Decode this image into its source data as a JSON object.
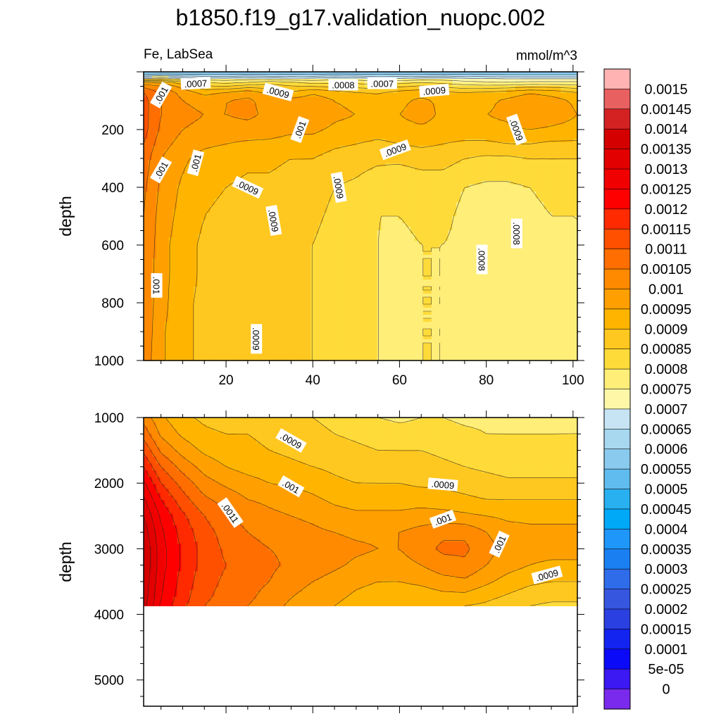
{
  "figure": {
    "title": "b1850.f19_g17.validation_nuopc.002",
    "left_string": "Fe, LabSea",
    "right_string": "mmol/m^3"
  },
  "colors": {
    "frame": "#000000",
    "contour_line": "#222222",
    "missing": "#ffffff"
  },
  "chart_data": [
    {
      "type": "heatmap",
      "panel": "upper",
      "title": "",
      "xlabel": "",
      "ylabel": "depth",
      "xlim": [
        1,
        101
      ],
      "ylim": [
        1000,
        0
      ],
      "x_ticks": [
        20,
        40,
        60,
        80,
        100
      ],
      "x_tick_labels": [
        "20",
        "40",
        "60",
        "80",
        "100"
      ],
      "y_ticks": [
        200,
        400,
        600,
        800,
        1000
      ],
      "y_tick_labels": [
        "200",
        "400",
        "600",
        "800",
        "1000"
      ],
      "x": [
        1,
        5,
        10,
        15,
        20,
        25,
        30,
        35,
        40,
        45,
        50,
        55,
        60,
        65,
        70,
        75,
        80,
        85,
        90,
        95,
        101
      ],
      "depth": [
        5,
        20,
        40,
        70,
        100,
        150,
        200,
        250,
        300,
        400,
        500,
        600,
        700,
        800,
        900,
        1000
      ],
      "values": [
        [
          0.00055,
          0.00055,
          0.00055,
          0.00055,
          0.00055,
          0.00055,
          0.00055,
          0.00055,
          0.00055,
          0.00055,
          0.00055,
          0.00055,
          0.00055,
          0.00055,
          0.00055,
          0.00055,
          0.00055,
          0.00055,
          0.00055,
          0.00055,
          0.00055
        ],
        [
          0.0007,
          0.00072,
          0.00071,
          0.0007,
          0.0007,
          0.00071,
          0.0007,
          0.00069,
          0.0007,
          0.00072,
          0.00071,
          0.0007,
          0.00069,
          0.0007,
          0.00071,
          0.0007,
          0.00069,
          0.00068,
          0.00068,
          0.00068,
          0.00068
        ],
        [
          0.001,
          0.00098,
          0.0009,
          0.00082,
          0.0008,
          0.00082,
          0.00085,
          0.00083,
          0.0008,
          0.0008,
          0.0008,
          0.00078,
          0.0008,
          0.00082,
          0.0008,
          0.00078,
          0.00077,
          0.00077,
          0.00078,
          0.00078,
          0.00078
        ],
        [
          0.0011,
          0.00104,
          0.00098,
          0.00093,
          0.00095,
          0.00098,
          0.00093,
          0.0009,
          0.00094,
          0.00092,
          0.0009,
          0.00089,
          0.00092,
          0.00093,
          0.00091,
          0.0009,
          0.00091,
          0.00092,
          0.00094,
          0.00093,
          0.0009
        ],
        [
          0.00112,
          0.00105,
          0.001,
          0.00098,
          0.001,
          0.00101,
          0.00098,
          0.00097,
          0.00098,
          0.00095,
          0.00094,
          0.00093,
          0.00094,
          0.00096,
          0.00094,
          0.00093,
          0.00094,
          0.00096,
          0.00099,
          0.00097,
          0.00094
        ],
        [
          0.00112,
          0.00105,
          0.00102,
          0.001,
          0.001,
          0.00101,
          0.00099,
          0.00098,
          0.00099,
          0.00096,
          0.00095,
          0.00094,
          0.00095,
          0.00097,
          0.00094,
          0.00094,
          0.00095,
          0.00096,
          0.001,
          0.00098,
          0.00095
        ],
        [
          0.00112,
          0.00104,
          0.001,
          0.00098,
          0.00098,
          0.00098,
          0.00097,
          0.00096,
          0.00096,
          0.00094,
          0.00093,
          0.00092,
          0.00093,
          0.00094,
          0.00093,
          0.00093,
          0.00093,
          0.00094,
          0.00095,
          0.00094,
          0.00093
        ],
        [
          0.0011,
          0.00102,
          0.00098,
          0.00096,
          0.00095,
          0.00094,
          0.00094,
          0.00093,
          0.00093,
          0.00091,
          0.0009,
          0.00089,
          0.0009,
          0.00091,
          0.0009,
          0.00089,
          0.00089,
          0.0009,
          0.0009,
          0.00089,
          0.00089
        ],
        [
          0.00108,
          0.001,
          0.00096,
          0.00093,
          0.00092,
          0.00091,
          0.00091,
          0.0009,
          0.0009,
          0.00088,
          0.00087,
          0.00086,
          0.00086,
          0.00087,
          0.00087,
          0.00085,
          0.00084,
          0.00084,
          0.00085,
          0.00085,
          0.00085
        ],
        [
          0.00106,
          0.00099,
          0.00094,
          0.00091,
          0.0009,
          0.00089,
          0.00089,
          0.00088,
          0.00087,
          0.00085,
          0.00084,
          0.00082,
          0.00081,
          0.00082,
          0.00082,
          0.0008,
          0.00079,
          0.00079,
          0.0008,
          0.00081,
          0.00081
        ],
        [
          0.00105,
          0.00098,
          0.00093,
          0.0009,
          0.00089,
          0.00088,
          0.00089,
          0.00087,
          0.00086,
          0.00084,
          0.00083,
          0.0008,
          0.0008,
          0.00081,
          0.00081,
          0.00079,
          0.00079,
          0.00078,
          0.00079,
          0.0008,
          0.0008
        ],
        [
          0.00105,
          0.00097,
          0.00092,
          0.00089,
          0.00088,
          0.00088,
          0.00089,
          0.00086,
          0.00085,
          0.00083,
          0.00082,
          0.0008,
          0.00079,
          0.0008,
          0.0008,
          0.00079,
          0.00078,
          0.00078,
          0.00079,
          0.00079,
          0.0008
        ],
        [
          0.00104,
          0.00097,
          0.00092,
          0.00089,
          0.00088,
          0.00088,
          0.00089,
          0.00086,
          0.00085,
          0.00083,
          0.00082,
          0.0008,
          0.00079,
          0.0008,
          0.0008,
          0.00079,
          0.00078,
          0.00079,
          0.00079,
          0.00079,
          0.0008
        ],
        [
          0.00104,
          0.00097,
          0.00091,
          0.00089,
          0.00088,
          0.00088,
          0.00088,
          0.00086,
          0.00085,
          0.00083,
          0.00082,
          0.0008,
          0.00079,
          0.0008,
          0.0008,
          0.00079,
          0.00079,
          0.00079,
          0.00079,
          0.00079,
          0.0008
        ],
        [
          0.00104,
          0.00096,
          0.00091,
          0.00089,
          0.00088,
          0.00088,
          0.00088,
          0.00086,
          0.00085,
          0.00083,
          0.00082,
          0.0008,
          0.00079,
          0.0008,
          0.0008,
          0.00079,
          0.00079,
          0.00079,
          0.00079,
          0.00079,
          0.0008
        ],
        [
          0.00103,
          0.00096,
          0.00091,
          0.00089,
          0.00088,
          0.00088,
          0.00088,
          0.00086,
          0.00085,
          0.00083,
          0.00082,
          0.0008,
          0.00079,
          0.0008,
          0.0008,
          0.00079,
          0.00079,
          0.00079,
          0.00079,
          0.00079,
          0.0008
        ]
      ],
      "contour_labels": [
        {
          "text": ".001",
          "x": 5,
          "depth": 80,
          "angle": -60
        },
        {
          "text": ".0007",
          "x": 13,
          "depth": 40,
          "angle": -3
        },
        {
          "text": ".0009",
          "x": 32,
          "depth": 70,
          "angle": 15
        },
        {
          "text": ".0008",
          "x": 47,
          "depth": 45,
          "angle": 0
        },
        {
          "text": ".0007",
          "x": 56,
          "depth": 40,
          "angle": 0
        },
        {
          "text": ".0009",
          "x": 68,
          "depth": 65,
          "angle": -5
        },
        {
          "text": ".001",
          "x": 37,
          "depth": 200,
          "angle": -70
        },
        {
          "text": ".0009",
          "x": 87,
          "depth": 200,
          "angle": 70
        },
        {
          "text": ".0009",
          "x": 59,
          "depth": 270,
          "angle": -20
        },
        {
          "text": ".001",
          "x": 5,
          "depth": 340,
          "angle": -60
        },
        {
          "text": ".001",
          "x": 13,
          "depth": 315,
          "angle": -75
        },
        {
          "text": ".0009",
          "x": 25,
          "depth": 400,
          "angle": 25
        },
        {
          "text": ".0009",
          "x": 46,
          "depth": 400,
          "angle": 80
        },
        {
          "text": ".0009",
          "x": 31,
          "depth": 515,
          "angle": 80
        },
        {
          "text": ".0008",
          "x": 79,
          "depth": 650,
          "angle": 90
        },
        {
          "text": ".0008",
          "x": 87,
          "depth": 560,
          "angle": 90
        },
        {
          "text": ".001",
          "x": 4,
          "depth": 740,
          "angle": 90
        },
        {
          "text": ".0009",
          "x": 27,
          "depth": 925,
          "angle": 90
        }
      ]
    },
    {
      "type": "heatmap",
      "panel": "lower",
      "title": "",
      "xlabel": "",
      "ylabel": "depth",
      "xlim": [
        1,
        101
      ],
      "ylim": [
        5400,
        1000
      ],
      "y_ticks": [
        1000,
        2000,
        3000,
        4000,
        5000
      ],
      "y_tick_labels": [
        "1000",
        "2000",
        "3000",
        "4000",
        "5000"
      ],
      "x": [
        1,
        5,
        10,
        15,
        20,
        25,
        30,
        35,
        40,
        45,
        50,
        55,
        60,
        65,
        70,
        75,
        80,
        85,
        90,
        95,
        101
      ],
      "depth": [
        1000,
        1250,
        1500,
        1750,
        2000,
        2250,
        2500,
        2750,
        3000,
        3250,
        3500,
        3750,
        3870
      ],
      "valid_max_depth": 3870,
      "values": [
        [
          0.00103,
          0.00096,
          0.00091,
          0.00089,
          0.00088,
          0.00088,
          0.00088,
          0.00086,
          0.00085,
          0.00083,
          0.00082,
          0.0008,
          0.00079,
          0.0008,
          0.0008,
          0.00079,
          0.00079,
          0.00079,
          0.00079,
          0.00079,
          0.0008
        ],
        [
          0.00108,
          0.00099,
          0.00094,
          0.00091,
          0.0009,
          0.0009,
          0.00089,
          0.00088,
          0.00087,
          0.00085,
          0.00084,
          0.00083,
          0.00082,
          0.00082,
          0.00082,
          0.00081,
          0.0008,
          0.0008,
          0.0008,
          0.0008,
          0.0008
        ],
        [
          0.00114,
          0.00104,
          0.00098,
          0.00094,
          0.00092,
          0.00091,
          0.0009,
          0.00089,
          0.00088,
          0.00087,
          0.00086,
          0.00085,
          0.00085,
          0.00085,
          0.00084,
          0.00083,
          0.00082,
          0.00081,
          0.00081,
          0.00081,
          0.00081
        ],
        [
          0.0012,
          0.0011,
          0.00103,
          0.00098,
          0.00095,
          0.00093,
          0.00092,
          0.00091,
          0.0009,
          0.00089,
          0.00088,
          0.00087,
          0.00087,
          0.00087,
          0.00086,
          0.00085,
          0.00084,
          0.00083,
          0.00083,
          0.00083,
          0.00083
        ],
        [
          0.00126,
          0.00115,
          0.00108,
          0.00102,
          0.00099,
          0.00097,
          0.00095,
          0.00094,
          0.00093,
          0.00091,
          0.0009,
          0.0009,
          0.0009,
          0.00089,
          0.00089,
          0.00088,
          0.00087,
          0.00086,
          0.00086,
          0.00086,
          0.00086
        ],
        [
          0.00131,
          0.0012,
          0.00112,
          0.00106,
          0.00103,
          0.001,
          0.00099,
          0.00098,
          0.00096,
          0.00094,
          0.00093,
          0.00093,
          0.00093,
          0.00093,
          0.00092,
          0.00091,
          0.0009,
          0.0009,
          0.0009,
          0.0009,
          0.0009
        ],
        [
          0.00135,
          0.00124,
          0.00116,
          0.0011,
          0.00106,
          0.00103,
          0.00101,
          0.001,
          0.00099,
          0.00097,
          0.00096,
          0.00096,
          0.00096,
          0.00097,
          0.00097,
          0.00096,
          0.00095,
          0.00094,
          0.00094,
          0.00094,
          0.00094
        ],
        [
          0.00138,
          0.00126,
          0.00118,
          0.00112,
          0.00108,
          0.00105,
          0.00103,
          0.00102,
          0.00101,
          0.001,
          0.00099,
          0.00099,
          0.001,
          0.00102,
          0.00104,
          0.00104,
          0.001,
          0.00097,
          0.00096,
          0.00096,
          0.00096
        ],
        [
          0.0014,
          0.00127,
          0.00119,
          0.00113,
          0.00109,
          0.00107,
          0.00105,
          0.00104,
          0.00103,
          0.00102,
          0.00101,
          0.001,
          0.001,
          0.00103,
          0.00106,
          0.00106,
          0.00102,
          0.00098,
          0.00097,
          0.00097,
          0.00097
        ],
        [
          0.0014,
          0.00127,
          0.00119,
          0.00113,
          0.0011,
          0.00108,
          0.00106,
          0.00104,
          0.00103,
          0.00101,
          0.00099,
          0.00098,
          0.00098,
          0.001,
          0.00103,
          0.00104,
          0.001,
          0.00097,
          0.00095,
          0.00094,
          0.00094
        ],
        [
          0.00139,
          0.00126,
          0.00118,
          0.00112,
          0.00109,
          0.00107,
          0.00105,
          0.00102,
          0.001,
          0.00098,
          0.00096,
          0.00095,
          0.00095,
          0.00096,
          0.00098,
          0.00099,
          0.00096,
          0.00093,
          0.00091,
          0.0009,
          0.0009
        ],
        [
          0.00138,
          0.00125,
          0.00117,
          0.00111,
          0.00108,
          0.00106,
          0.00103,
          0.001,
          0.00098,
          0.00096,
          0.00094,
          0.00093,
          0.00092,
          0.00092,
          0.00093,
          0.00093,
          0.00091,
          0.00089,
          0.00087,
          0.00086,
          0.00086
        ],
        [
          0.00137,
          0.00124,
          0.00116,
          0.0011,
          0.00107,
          0.00105,
          0.00102,
          0.00099,
          0.00097,
          0.00095,
          0.00093,
          0.00092,
          0.00091,
          0.0009,
          0.00091,
          0.0009,
          0.00089,
          0.00087,
          0.00085,
          0.00084,
          0.00084
        ]
      ],
      "contour_labels": [
        {
          "text": ".0009",
          "x": 35,
          "depth": 1350,
          "angle": 30
        },
        {
          "text": ".001",
          "x": 35,
          "depth": 2050,
          "angle": 30
        },
        {
          "text": ".0011",
          "x": 21,
          "depth": 2450,
          "angle": 55
        },
        {
          "text": ".0009",
          "x": 70,
          "depth": 2020,
          "angle": 5
        },
        {
          "text": ".001",
          "x": 70,
          "depth": 2550,
          "angle": -20
        },
        {
          "text": ".001",
          "x": 83,
          "depth": 2930,
          "angle": -65
        },
        {
          "text": ".0009",
          "x": 94,
          "depth": 3400,
          "angle": -15
        }
      ]
    }
  ],
  "colorbar": {
    "labels": [
      "0.0015",
      "0.00145",
      "0.0014",
      "0.00135",
      "0.0013",
      "0.00125",
      "0.0012",
      "0.00115",
      "0.0011",
      "0.00105",
      "0.001",
      "0.00095",
      "0.0009",
      "0.00085",
      "0.0008",
      "0.00075",
      "0.0007",
      "0.00065",
      "0.0006",
      "0.00055",
      "0.0005",
      "0.00045",
      "0.0004",
      "0.00035",
      "0.0003",
      "0.00025",
      "0.0002",
      "0.00015",
      "0.0001",
      "5e-05",
      "0"
    ],
    "colors": [
      "#FFB3B3",
      "#E86060",
      "#D42222",
      "#D40000",
      "#E20000",
      "#F00000",
      "#FF0000",
      "#FF2A00",
      "#FF5000",
      "#FF6E00",
      "#FF8A00",
      "#FFA000",
      "#FFB500",
      "#FFC820",
      "#FFDB3A",
      "#FFEE78",
      "#FFF7A8",
      "#C6E4F4",
      "#A7D8F0",
      "#8ACAEE",
      "#60BCEE",
      "#28B0F0",
      "#00A8F8",
      "#1E96FA",
      "#1A80F2",
      "#2F6CEA",
      "#3656E0",
      "#2A40E0",
      "#1424F0",
      "#0A0AF8",
      "#3C18F2",
      "#7A2AEC"
    ]
  }
}
